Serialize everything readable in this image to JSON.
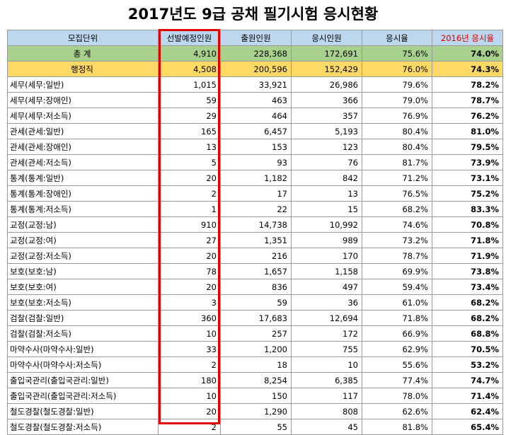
{
  "title": "2017년도 9급 공채 필기시험 응시현황",
  "headers": [
    "모집단위",
    "선발예정인원",
    "출원인원",
    "응시인원",
    "응시율",
    "2016년 응시율"
  ],
  "rows": [
    {
      "name": "총 계",
      "cells": [
        "4,910",
        "228,368",
        "172,691",
        "75.6%",
        "74.0%"
      ],
      "type": "total"
    },
    {
      "name": "행정직",
      "cells": [
        "4,508",
        "200,596",
        "152,429",
        "76.0%",
        "74.3%"
      ],
      "type": "admin"
    },
    {
      "name": "세무(세무:일반)",
      "cells": [
        "1,015",
        "33,921",
        "26,986",
        "79.6%",
        "78.2%"
      ]
    },
    {
      "name": "세무(세무:장애인)",
      "cells": [
        "59",
        "463",
        "366",
        "79.0%",
        "78.7%"
      ]
    },
    {
      "name": "세무(세무:저소득)",
      "cells": [
        "29",
        "464",
        "357",
        "76.9%",
        "76.2%"
      ]
    },
    {
      "name": "관세(관세:일반)",
      "cells": [
        "165",
        "6,457",
        "5,193",
        "80.4%",
        "81.0%"
      ]
    },
    {
      "name": "관세(관세:장애인)",
      "cells": [
        "13",
        "153",
        "123",
        "80.4%",
        "79.5%"
      ]
    },
    {
      "name": "관세(관세:저소득)",
      "cells": [
        "5",
        "93",
        "76",
        "81.7%",
        "73.9%"
      ]
    },
    {
      "name": "통계(통계:일반)",
      "cells": [
        "20",
        "1,182",
        "842",
        "71.2%",
        "73.1%"
      ]
    },
    {
      "name": "통계(통계:장애인)",
      "cells": [
        "2",
        "17",
        "13",
        "76.5%",
        "75.2%"
      ]
    },
    {
      "name": "통계(통계:저소득)",
      "cells": [
        "1",
        "22",
        "15",
        "68.2%",
        "83.3%"
      ]
    },
    {
      "name": "교정(교정:남)",
      "cells": [
        "910",
        "14,738",
        "10,992",
        "74.6%",
        "70.8%"
      ]
    },
    {
      "name": "교정(교정:여)",
      "cells": [
        "27",
        "1,351",
        "989",
        "73.2%",
        "71.8%"
      ]
    },
    {
      "name": "교정(교정:저소득)",
      "cells": [
        "20",
        "216",
        "170",
        "78.7%",
        "71.9%"
      ]
    },
    {
      "name": "보호(보호:남)",
      "cells": [
        "78",
        "1,657",
        "1,158",
        "69.9%",
        "73.8%"
      ]
    },
    {
      "name": "보호(보호:여)",
      "cells": [
        "20",
        "836",
        "497",
        "59.4%",
        "73.4%"
      ]
    },
    {
      "name": "보호(보호:저소득)",
      "cells": [
        "3",
        "59",
        "36",
        "61.0%",
        "68.2%"
      ]
    },
    {
      "name": "검찰(검찰:일반)",
      "cells": [
        "360",
        "17,683",
        "12,694",
        "71.8%",
        "68.2%"
      ]
    },
    {
      "name": "검찰(검찰:저소득)",
      "cells": [
        "10",
        "257",
        "172",
        "66.9%",
        "68.8%"
      ]
    },
    {
      "name": "마약수사(마약수사:일반)",
      "cells": [
        "33",
        "1,200",
        "755",
        "62.9%",
        "70.5%"
      ]
    },
    {
      "name": "마약수사(마약수사:저소득)",
      "cells": [
        "2",
        "18",
        "10",
        "55.6%",
        "53.2%"
      ]
    },
    {
      "name": "출입국관리(출입국관리:일반)",
      "cells": [
        "180",
        "8,254",
        "6,385",
        "77.4%",
        "74.7%"
      ]
    },
    {
      "name": "출입국관리(출입국관리:저소득)",
      "cells": [
        "10",
        "150",
        "117",
        "78.0%",
        "71.4%"
      ]
    },
    {
      "name": "철도경찰(철도경찰:일반)",
      "cells": [
        "20",
        "1,290",
        "808",
        "62.6%",
        "62.4%"
      ]
    },
    {
      "name": "철도경찰(철도경찰:저소득)",
      "cells": [
        "2",
        "55",
        "45",
        "81.8%",
        "65.4%"
      ]
    }
  ],
  "colors": {
    "header_bg": "#bdd7ee",
    "total_bg": "#a9d18e",
    "admin_bg": "#ffd966",
    "highlight": "#e00000"
  }
}
